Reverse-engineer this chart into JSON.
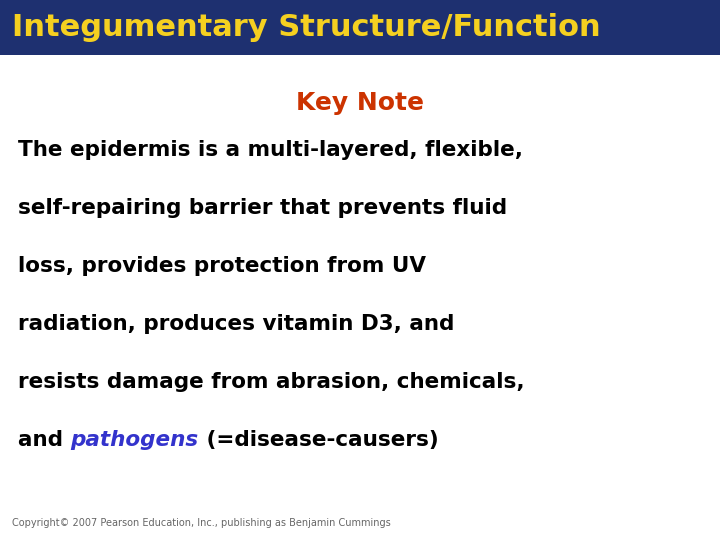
{
  "title": "Integumentary Structure/Function",
  "title_bg_color": "#1e3070",
  "title_text_color": "#f5d020",
  "title_fontsize": 22,
  "keynote_label": "Key Note",
  "keynote_color": "#cc3300",
  "keynote_fontsize": 18,
  "body_color": "#000000",
  "body_fontsize": 15.5,
  "italic_color": "#3333cc",
  "copyright": "Copyright© 2007 Pearson Education, Inc., publishing as Benjamin Cummings",
  "copyright_fontsize": 7,
  "bg_color": "#ffffff",
  "line1": "The epidermis is a multi-layered, flexible,",
  "line2": "self-repairing barrier that prevents fluid",
  "line3": "loss, provides protection from UV",
  "line4": "radiation, produces vitamin D3, and",
  "line5": "resists damage from abrasion, chemicals,",
  "line6_before": "and ",
  "line6_italic": "pathogens",
  "line6_after": " (=disease-causers)"
}
